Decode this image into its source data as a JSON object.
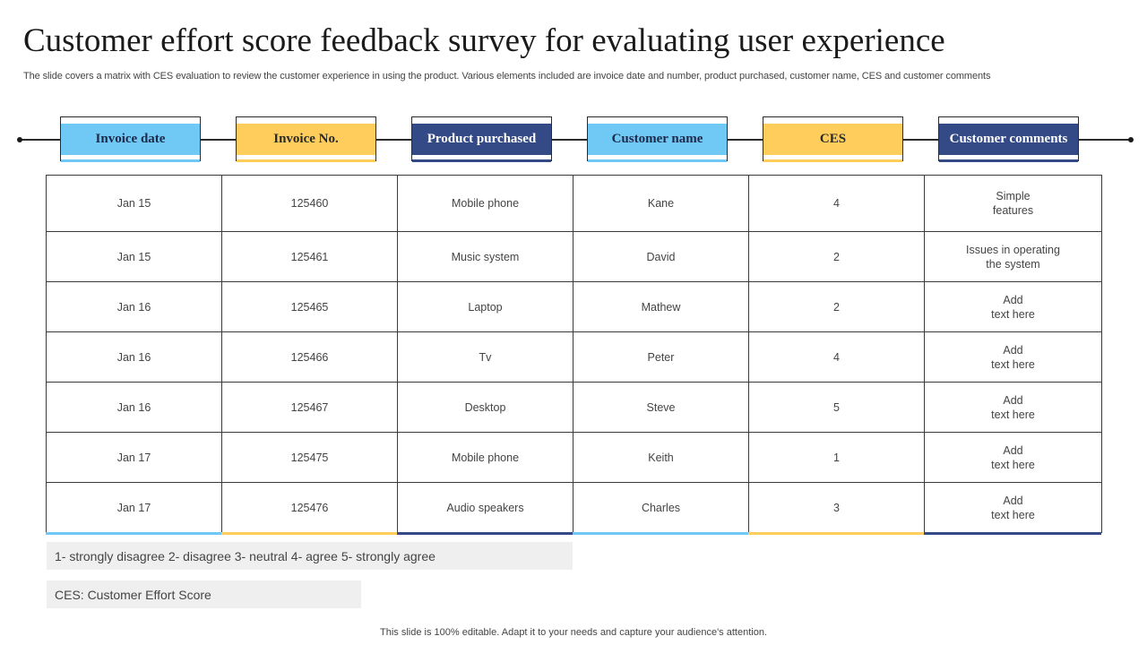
{
  "title": "Customer effort score feedback survey for evaluating user experience",
  "subtitle": "The slide covers a matrix with CES evaluation to review the customer experience in using the product. Various elements included are invoice date and number, product purchased, customer name, CES and customer comments",
  "headers": [
    {
      "label": "Invoice date",
      "color": "#70c8f5"
    },
    {
      "label": "Invoice No.",
      "color": "#fecd5c"
    },
    {
      "label": "Product  purchased",
      "color": "#344a86"
    },
    {
      "label": "Customer name",
      "color": "#70c8f5"
    },
    {
      "label": "CES",
      "color": "#fecd5c"
    },
    {
      "label": "Customer comments",
      "color": "#344a86"
    }
  ],
  "rows": [
    {
      "date": "Jan 15",
      "invoice": "125460",
      "product": "Mobile phone",
      "customer": "Kane",
      "ces": "4",
      "comment": [
        "Simple",
        "features"
      ]
    },
    {
      "date": "Jan 15",
      "invoice": "125461",
      "product": "Music system",
      "customer": "David",
      "ces": "2",
      "comment": [
        "Issues in operating",
        "the system"
      ]
    },
    {
      "date": "Jan 16",
      "invoice": "125465",
      "product": "Laptop",
      "customer": "Mathew",
      "ces": "2",
      "comment": [
        "Add",
        "text here"
      ]
    },
    {
      "date": "Jan 16",
      "invoice": "125466",
      "product": "Tv",
      "customer": "Peter",
      "ces": "4",
      "comment": [
        "Add",
        "text here"
      ]
    },
    {
      "date": "Jan 16",
      "invoice": "125467",
      "product": "Desktop",
      "customer": "Steve",
      "ces": "5",
      "comment": [
        "Add",
        "text here"
      ]
    },
    {
      "date": "Jan 17",
      "invoice": "125475",
      "product": "Mobile phone",
      "customer": "Keith",
      "ces": "1",
      "comment": [
        "Add",
        "text here"
      ]
    },
    {
      "date": "Jan 17",
      "invoice": "125476",
      "product": "Audio speakers",
      "customer": "Charles",
      "ces": "3",
      "comment": [
        "Add",
        "text here"
      ]
    }
  ],
  "legend": "1- strongly disagree 2- disagree 3- neutral 4- agree 5- strongly agree",
  "abbreviation": "CES: Customer Effort Score",
  "footer": "This slide is 100% editable. Adapt it to your needs and capture your audience's attention."
}
